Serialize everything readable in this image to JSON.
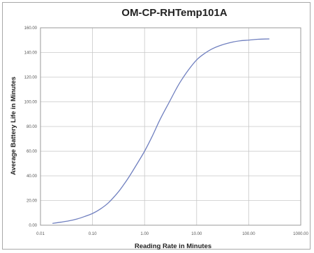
{
  "chart_data": {
    "type": "line",
    "title": "OM-CP-RHTemp101A",
    "xlabel": "Reading Rate in Minutes",
    "ylabel": "Average Battery Life in Minutes",
    "x_scale": "log",
    "xlim": [
      0.01,
      1000
    ],
    "ylim": [
      0,
      160
    ],
    "x_ticks": [
      0.01,
      0.1,
      1,
      10,
      100,
      1000
    ],
    "x_tick_labels": [
      "0.01",
      "0.10",
      "1.00",
      "10.00",
      "100.00",
      "1000.00"
    ],
    "y_ticks": [
      0,
      20,
      40,
      60,
      80,
      100,
      120,
      140,
      160
    ],
    "y_tick_labels": [
      "0.00",
      "20.00",
      "40.00",
      "60.00",
      "80.00",
      "100.00",
      "120.00",
      "140.00",
      "160.00"
    ],
    "grid": true,
    "line_color": "#6f7fbf",
    "series": [
      {
        "x": [
          0.017,
          0.025,
          0.035,
          0.05,
          0.07,
          0.1,
          0.14,
          0.2,
          0.3,
          0.4,
          0.5,
          0.7,
          1.0,
          1.4,
          2.0,
          3.0,
          4.0,
          5.0,
          7.0,
          10.0,
          14.0,
          20.0,
          30.0,
          50.0,
          70.0,
          100.0,
          150.0,
          250.0
        ],
        "y": [
          1.5,
          2.5,
          3.5,
          5,
          7,
          9.5,
          13,
          18,
          26,
          33,
          39,
          49,
          60,
          72,
          86,
          100,
          110,
          117,
          126,
          134,
          139,
          143,
          146,
          148.5,
          149.5,
          150,
          150.7,
          151
        ]
      }
    ]
  }
}
